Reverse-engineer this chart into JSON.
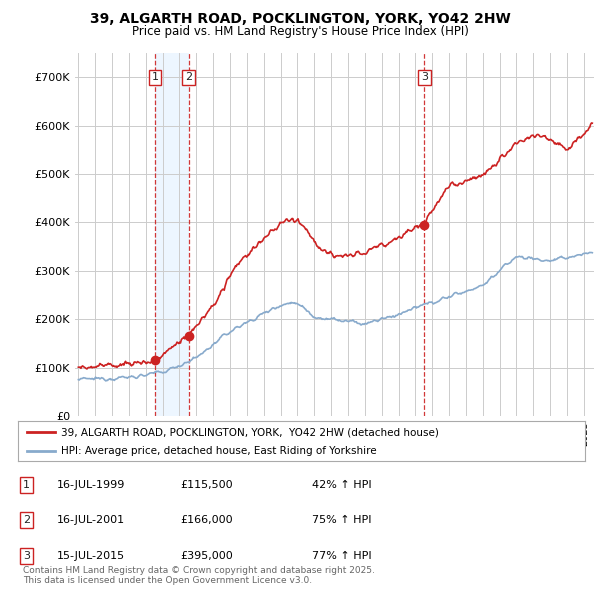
{
  "title1": "39, ALGARTH ROAD, POCKLINGTON, YORK, YO42 2HW",
  "title2": "Price paid vs. HM Land Registry's House Price Index (HPI)",
  "ylim": [
    0,
    750000
  ],
  "yticks": [
    0,
    100000,
    200000,
    300000,
    400000,
    500000,
    600000,
    700000
  ],
  "ytick_labels": [
    "£0",
    "£100K",
    "£200K",
    "£300K",
    "£400K",
    "£500K",
    "£600K",
    "£700K"
  ],
  "sale_color": "#cc2222",
  "hpi_color": "#88aacc",
  "vline_color": "#cc2222",
  "bg_color": "#ffffff",
  "grid_color": "#dddddd",
  "shade_color": "#ddeeff",
  "transactions": [
    {
      "date_num": 1999.54,
      "price": 115500,
      "label": "1"
    },
    {
      "date_num": 2001.54,
      "price": 166000,
      "label": "2"
    },
    {
      "date_num": 2015.54,
      "price": 395000,
      "label": "3"
    }
  ],
  "legend_line1": "39, ALGARTH ROAD, POCKLINGTON, YORK,  YO42 2HW (detached house)",
  "legend_line2": "HPI: Average price, detached house, East Riding of Yorkshire",
  "table_rows": [
    {
      "num": "1",
      "date": "16-JUL-1999",
      "price": "£115,500",
      "change": "42% ↑ HPI"
    },
    {
      "num": "2",
      "date": "16-JUL-2001",
      "price": "£166,000",
      "change": "75% ↑ HPI"
    },
    {
      "num": "3",
      "date": "15-JUL-2015",
      "price": "£395,000",
      "change": "77% ↑ HPI"
    }
  ],
  "footer": "Contains HM Land Registry data © Crown copyright and database right 2025.\nThis data is licensed under the Open Government Licence v3.0.",
  "xlim_left": 1994.8,
  "xlim_right": 2025.6
}
